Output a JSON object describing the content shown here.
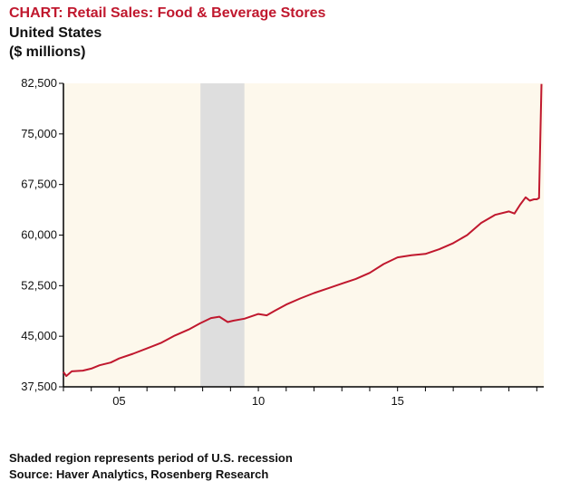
{
  "chart_data": {
    "type": "line",
    "title": "CHART: Retail Sales: Food & Beverage Stores",
    "subtitle_lines": [
      "United States",
      "($ millions)"
    ],
    "xlabel": "",
    "ylabel": "",
    "x_range": [
      2003.0,
      2020.25
    ],
    "ylim": [
      37500,
      82500
    ],
    "y_ticks": [
      37500,
      45000,
      52500,
      60000,
      67500,
      75000,
      82500
    ],
    "y_tick_labels": [
      "37,500",
      "45,000",
      "52,500",
      "60,000",
      "67,500",
      "75,000",
      "82,500"
    ],
    "x_ticks": [
      2005,
      2010,
      2015
    ],
    "x_tick_labels": [
      "05",
      "10",
      "15"
    ],
    "recession": {
      "start": 2007.92,
      "end": 2009.5
    },
    "series": [
      {
        "name": "Retail Sales: Food & Beverage Stores",
        "x": [
          2003.0,
          2003.1,
          2003.3,
          2003.7,
          2004.0,
          2004.3,
          2004.7,
          2005.0,
          2005.5,
          2006.0,
          2006.5,
          2007.0,
          2007.5,
          2007.9,
          2008.3,
          2008.6,
          2008.9,
          2009.1,
          2009.5,
          2010.0,
          2010.3,
          2010.6,
          2011.0,
          2011.5,
          2012.0,
          2012.5,
          2013.0,
          2013.5,
          2014.0,
          2014.5,
          2015.0,
          2015.5,
          2016.0,
          2016.5,
          2017.0,
          2017.5,
          2018.0,
          2018.5,
          2019.0,
          2019.2,
          2019.4,
          2019.6,
          2019.75,
          2019.9,
          2020.0,
          2020.08,
          2020.17
        ],
        "values": [
          39700,
          39100,
          39800,
          39900,
          40200,
          40700,
          41100,
          41700,
          42400,
          43200,
          44000,
          45100,
          46000,
          46900,
          47700,
          47900,
          47100,
          47300,
          47600,
          48300,
          48100,
          48800,
          49700,
          50600,
          51400,
          52100,
          52800,
          53500,
          54400,
          55700,
          56700,
          57000,
          57200,
          57900,
          58800,
          60000,
          61800,
          63000,
          63500,
          63200,
          64500,
          65600,
          65100,
          65300,
          65300,
          65500,
          82400
        ]
      }
    ],
    "footer_lines": [
      "Shaded region represents period of U.S. recession",
      "Source: Haver Analytics, Rosenberg Research"
    ],
    "colors": {
      "line": "#c0182e",
      "plot_background": "#fdf8ec",
      "recession_shade": "#dedede",
      "title": "#c0182e",
      "text": "#111111"
    }
  }
}
